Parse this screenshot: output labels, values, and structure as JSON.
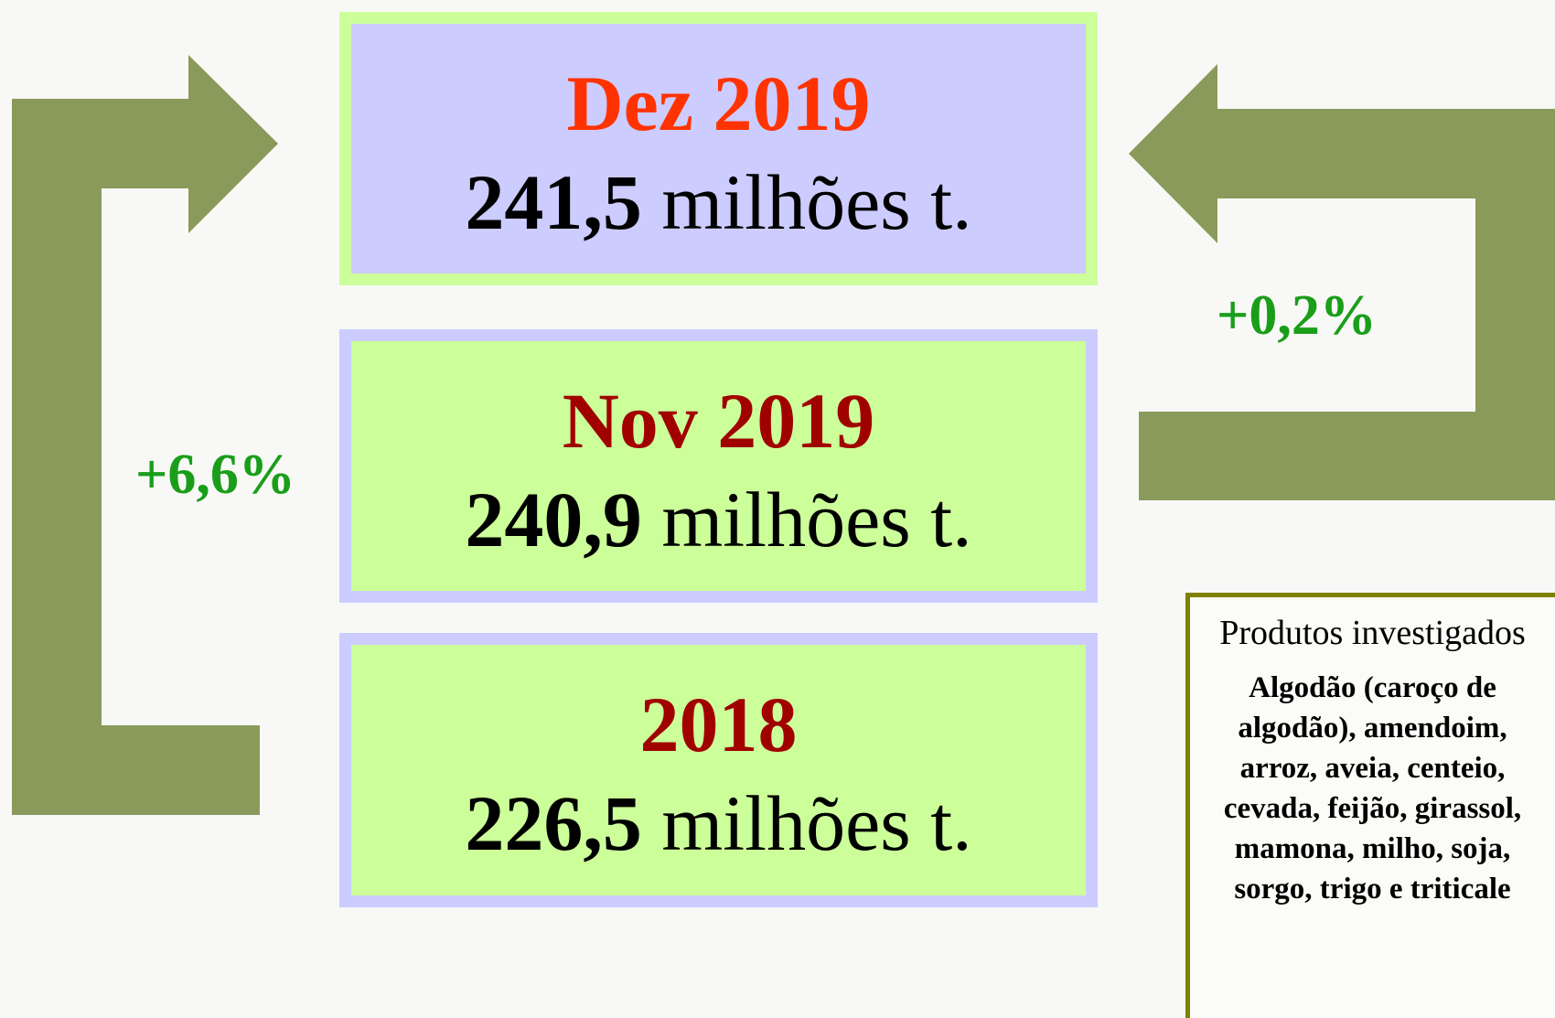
{
  "boxes": [
    {
      "title": "Dez 2019",
      "value": "241,5",
      "unit": " milhões t."
    },
    {
      "title": "Nov 2019",
      "value": "240,9",
      "unit": " milhões t."
    },
    {
      "title": "2018",
      "value": "226,5",
      "unit": " milhões t."
    }
  ],
  "changes": {
    "left": "+6,6%",
    "right": "+0,2%"
  },
  "side_box": {
    "title": "Produtos investigados",
    "text": "Algodão (caroço de algodão), amendoim, arroz, aveia, centeio, cevada, feijão, girassol, mamona, milho, soja, sorgo, trigo e triticale"
  }
}
